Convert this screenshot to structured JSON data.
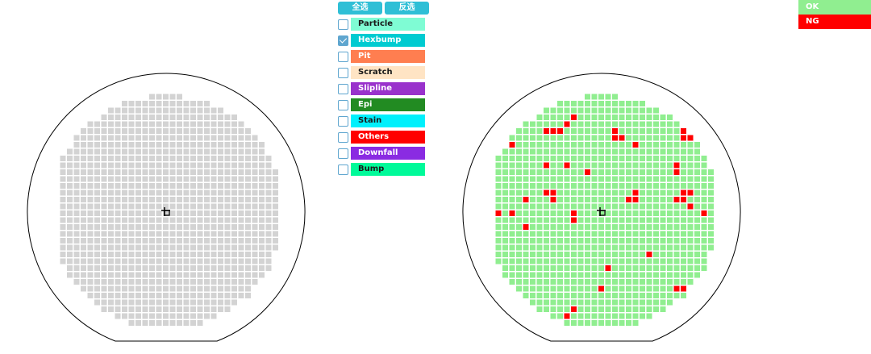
{
  "filter": {
    "select_all_label": "全选",
    "invert_label": "反选",
    "defects": [
      {
        "label": "Particle",
        "color": "#7ffcd4",
        "text_color": "#1a1a1a",
        "checked": false
      },
      {
        "label": "Hexbump",
        "color": "#00cbd1",
        "text_color": "#ffffff",
        "checked": true
      },
      {
        "label": "Pit",
        "color": "#ff7e50",
        "text_color": "#ffffff",
        "checked": false
      },
      {
        "label": "Scratch",
        "color": "#ffe4c4",
        "text_color": "#1a1a1a",
        "checked": false
      },
      {
        "label": "Slipline",
        "color": "#9932cc",
        "text_color": "#ffffff",
        "checked": false
      },
      {
        "label": "Epi",
        "color": "#228b22",
        "text_color": "#ffffff",
        "checked": false
      },
      {
        "label": "Stain",
        "color": "#00f0fc",
        "text_color": "#1a1a1a",
        "checked": false
      },
      {
        "label": "Others",
        "color": "#ff0000",
        "text_color": "#ffffff",
        "checked": false
      },
      {
        "label": "Downfall",
        "color": "#8a2be2",
        "text_color": "#ffffff",
        "checked": false
      },
      {
        "label": "Bump",
        "color": "#00fa99",
        "text_color": "#1a1a1a",
        "checked": false
      }
    ]
  },
  "legend": {
    "items": [
      {
        "label": "OK",
        "color": "#90ee90"
      },
      {
        "label": "NG",
        "color": "#ff0000"
      }
    ]
  },
  "wafer_maps": {
    "left": {
      "die_color": "#d3d3d3"
    },
    "right": {
      "ok_color": "#90ee90",
      "ng_color": "#ff0000",
      "ng_dies": [
        [
          22,
          2
        ],
        [
          25,
          2
        ],
        [
          11,
          4
        ],
        [
          10,
          5
        ],
        [
          7,
          6
        ],
        [
          8,
          6
        ],
        [
          9,
          6
        ],
        [
          17,
          6
        ],
        [
          27,
          6
        ],
        [
          17,
          7
        ],
        [
          18,
          7
        ],
        [
          27,
          7
        ],
        [
          28,
          7
        ],
        [
          2,
          8
        ],
        [
          20,
          8
        ],
        [
          7,
          11
        ],
        [
          10,
          11
        ],
        [
          26,
          11
        ],
        [
          13,
          12
        ],
        [
          26,
          12
        ],
        [
          7,
          15
        ],
        [
          8,
          15
        ],
        [
          20,
          15
        ],
        [
          28,
          15
        ],
        [
          27,
          15
        ],
        [
          4,
          16
        ],
        [
          8,
          16
        ],
        [
          19,
          16
        ],
        [
          20,
          16
        ],
        [
          26,
          16
        ],
        [
          27,
          16
        ],
        [
          28,
          17
        ],
        [
          0,
          18
        ],
        [
          2,
          18
        ],
        [
          11,
          18
        ],
        [
          30,
          18
        ],
        [
          11,
          19
        ],
        [
          4,
          20
        ],
        [
          22,
          24
        ],
        [
          16,
          26
        ],
        [
          15,
          29
        ],
        [
          26,
          29
        ],
        [
          27,
          29
        ],
        [
          11,
          32
        ],
        [
          10,
          33
        ]
      ]
    }
  }
}
